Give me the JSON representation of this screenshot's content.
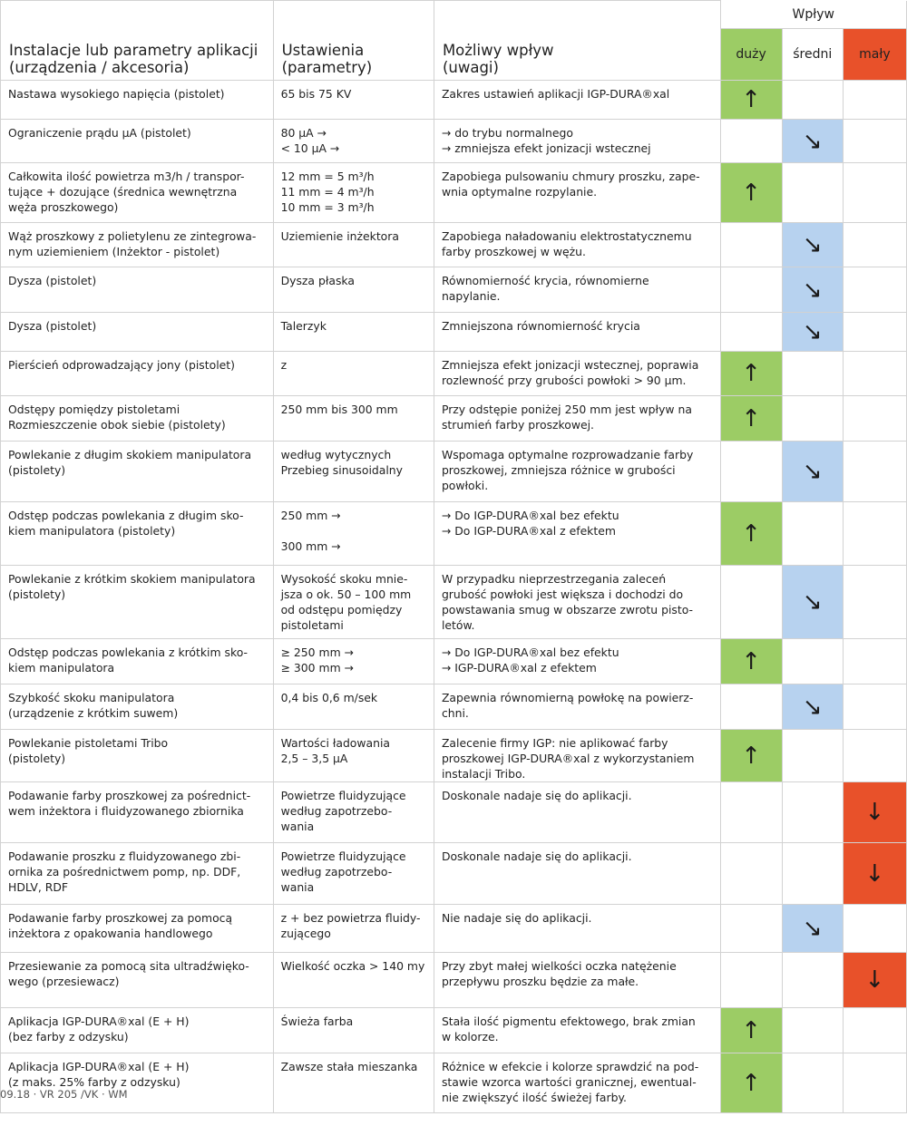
{
  "header": {
    "col_installation": "Instalacje lub parametry aplikacji\n(urządzenia / akcesoria)",
    "col_settings": "Ustawienia\n(parametry)",
    "col_impact": "Możliwy wpływ\n(uwagi)",
    "impact_group": "Wpływ",
    "levels": [
      "duży",
      "średni",
      "mały"
    ]
  },
  "colors": {
    "high": "#9ccc65",
    "medium": "#b7d2ef",
    "low": "#e8512a"
  },
  "indicator_icons": {
    "high": "up-arrow",
    "medium": "down-right-arrow",
    "low": "down-arrow"
  },
  "rows": [
    {
      "installation": "Nastawa wysokiego napięcia (pistolet)",
      "settings": "65 bis 75 KV",
      "remark": "Zakres ustawień aplikacji IGP-DURA®xal",
      "level": "high"
    },
    {
      "installation": "Ograniczenie prądu µA (pistolet)",
      "settings": "80 µA →\n< 10 µA →",
      "remark": "→ do trybu normalnego\n→ zmniejsza efekt jonizacji wstecznej",
      "level": "medium"
    },
    {
      "installation": "Całkowita ilość powietrza m3/h / transpor-\ntujące + dozujące (średnica wewnętrzna\nwęża proszkowego)",
      "settings": "12 mm = 5 m³/h\n11 mm = 4 m³/h\n10 mm = 3 m³/h",
      "remark": "Zapobiega pulsowaniu chmury proszku, zape-\nwnia optymalne rozpylanie.",
      "level": "high"
    },
    {
      "installation": "Wąż proszkowy z polietylenu ze zintegrowa-\nnym uziemieniem  (Inżektor - pistolet)",
      "settings": "Uziemienie inżektora",
      "remark": "Zapobiega naładowaniu elektrostatycznemu\nfarby proszkowej w wężu.",
      "level": "medium"
    },
    {
      "installation": "Dysza (pistolet)",
      "settings": "Dysza płaska",
      "remark": "Równomierność krycia, równomierne\nnapylanie.",
      "level": "medium"
    },
    {
      "installation": "Dysza (pistolet)",
      "settings": "Talerzyk",
      "remark": "Zmniejszona równomierność krycia",
      "level": "medium"
    },
    {
      "installation": "Pierścień odprowadzający jony (pistolet)",
      "settings": "z",
      "remark": "Zmniejsza efekt jonizacji wstecznej, poprawia\nrozlewność przy grubości powłoki > 90 µm.",
      "level": "high"
    },
    {
      "installation": "Odstępy pomiędzy pistoletami\nRozmieszczenie obok siebie (pistolety)",
      "settings": "250 mm bis 300 mm",
      "remark": "Przy odstępie poniżej 250 mm jest wpływ na\nstrumień farby proszkowej.",
      "level": "high"
    },
    {
      "installation": "Powlekanie z długim skokiem manipulatora\n(pistolety)",
      "settings": "według wytycznych\nPrzebieg sinusoidalny",
      "remark": "Wspomaga optymalne rozprowadzanie farby\nproszkowej, zmniejsza różnice w grubości\npowłoki.",
      "level": "medium"
    },
    {
      "installation": "Odstęp podczas powlekania z długim sko-\nkiem manipulatora (pistolety)",
      "settings": "250 mm →\n\n300 mm →",
      "remark": "→ Do IGP-DURA®xal bez efektu\n→ Do IGP-DURA®xal z efektem",
      "level": "high"
    },
    {
      "installation": "Powlekanie z krótkim skokiem manipulatora\n(pistolety)",
      "settings": "Wysokość skoku mnie-\njsza o ok. 50 – 100 mm\nod odstępu pomiędzy\npistoletami",
      "remark": "W przypadku nieprzestrzegania zaleceń\ngrubość powłoki jest większa i dochodzi do\npowstawania smug w obszarze zwrotu pisto-\nletów.",
      "level": "medium"
    },
    {
      "installation": "Odstęp podczas powlekania z krótkim sko-\nkiem manipulatora",
      "settings": "≥ 250 mm →\n≥ 300 mm →",
      "remark": "→  Do IGP-DURA®xal bez efektu\n→  IGP-DURA®xal z efektem",
      "level": "high"
    },
    {
      "installation": "Szybkość skoku manipulatora\n(urządzenie z krótkim suwem)",
      "settings": "0,4 bis 0,6 m/sek",
      "remark": "Zapewnia równomierną powłokę na powierz-\nchni.",
      "level": "medium"
    },
    {
      "installation": "Powlekanie pistoletami Tribo\n(pistolety)",
      "settings": "Wartości ładowania\n2,5 – 3,5 µA",
      "remark": "Zalecenie firmy IGP: nie aplikować farby\nproszkowej IGP-DURA®xal z wykorzystaniem\ninstalacji Tribo.",
      "level": "high"
    },
    {
      "installation": "Podawanie farby proszkowej za pośrednict-\nwem inżektora i fluidyzowanego zbiornika",
      "settings": "Powietrze fluidyzujące\nwedług zapotrzebo-\nwania",
      "remark": "Doskonale nadaje się do aplikacji.",
      "level": "low"
    },
    {
      "installation": "Podawanie proszku z fluidyzowanego zbi-\nornika za pośrednictwem pomp, np. DDF,\nHDLV, RDF",
      "settings": "Powietrze fluidyzujące\nwedług zapotrzebo-\nwania",
      "remark": "Doskonale nadaje się do aplikacji.",
      "level": "low"
    },
    {
      "installation": "Podawanie farby proszkowej za pomocą\ninżektora z opakowania handlowego",
      "settings": "z + bez powietrza fluidy-\nzującego",
      "remark": "Nie nadaje się do aplikacji.",
      "level": "medium"
    },
    {
      "installation": "Przesiewanie za pomocą sita ultradźwięko-\nwego (przesiewacz)",
      "settings": "Wielkość oczka > 140 my",
      "remark": "Przy zbyt małej wielkości oczka natężenie\nprzepływu proszku będzie za małe.",
      "level": "low"
    },
    {
      "installation": "Aplikacja IGP-DURA®xal (E + H)\n(bez farby z odzysku)",
      "settings": "Świeża farba",
      "remark": "Stała ilość pigmentu efektowego, brak zmian\nw kolorze.",
      "level": "high"
    },
    {
      "installation": "Aplikacja IGP-DURA®xal (E + H)\n(z maks. 25% farby z odzysku)",
      "settings": "Zawsze stała mieszanka",
      "remark": "Różnice w efekcie i kolorze sprawdzić na pod-\nstawie wzorca wartości granicznej, ewentual-\nnie zwiększyć ilość świeżej farby.",
      "level": "high"
    }
  ],
  "footer_text": "09.18 · VR 205 /VK · WM"
}
